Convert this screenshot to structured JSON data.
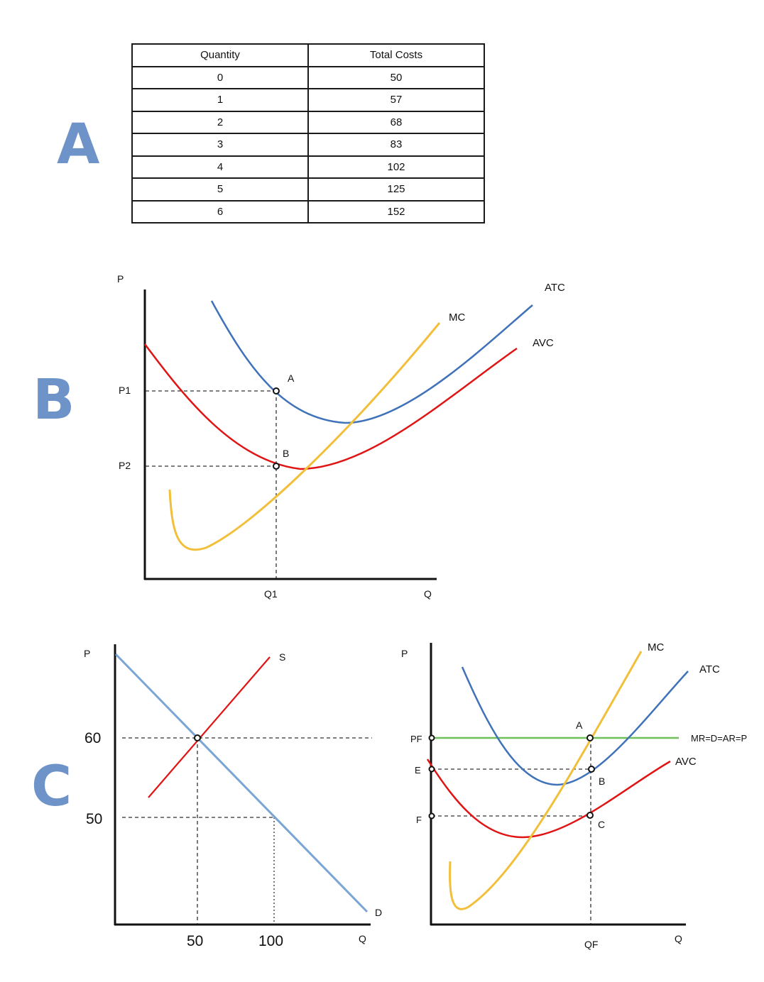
{
  "section_labels": {
    "a": "A",
    "b": "B",
    "c": "C"
  },
  "table": {
    "headers": [
      "Quantity",
      "Total Costs"
    ],
    "rows": [
      [
        "0",
        "50"
      ],
      [
        "1",
        "57"
      ],
      [
        "2",
        "68"
      ],
      [
        "3",
        "83"
      ],
      [
        "4",
        "102"
      ],
      [
        "5",
        "125"
      ],
      [
        "6",
        "152"
      ]
    ]
  },
  "graph_b": {
    "axis_p": "P",
    "axis_q": "Q",
    "p1": "P1",
    "p2": "P2",
    "q1": "Q1",
    "curve_mc": "MC",
    "curve_atc": "ATC",
    "curve_avc": "AVC",
    "point_a": "A",
    "point_b": "B"
  },
  "graph_c_left": {
    "axis_p": "P",
    "axis_q": "Q",
    "p60": "60",
    "p50": "50",
    "q50": "50",
    "q100": "100",
    "supply": "S",
    "demand": "D"
  },
  "graph_c_right": {
    "axis_p": "P",
    "axis_q": "Q",
    "pf": "PF",
    "e": "E",
    "f": "F",
    "qf": "QF",
    "curve_mc": "MC",
    "curve_atc": "ATC",
    "curve_avc": "AVC",
    "mr_line": "MR=D=AR=P",
    "point_a": "A",
    "point_b": "B",
    "point_c": "C"
  },
  "colors": {
    "mc": "#f2bf3a",
    "atc": "#3f72b8",
    "avc": "#e01414",
    "supply": "#e01414",
    "demand": "#7aa5d4",
    "mr": "#6fbf5a",
    "letters": "#6d93c8"
  }
}
